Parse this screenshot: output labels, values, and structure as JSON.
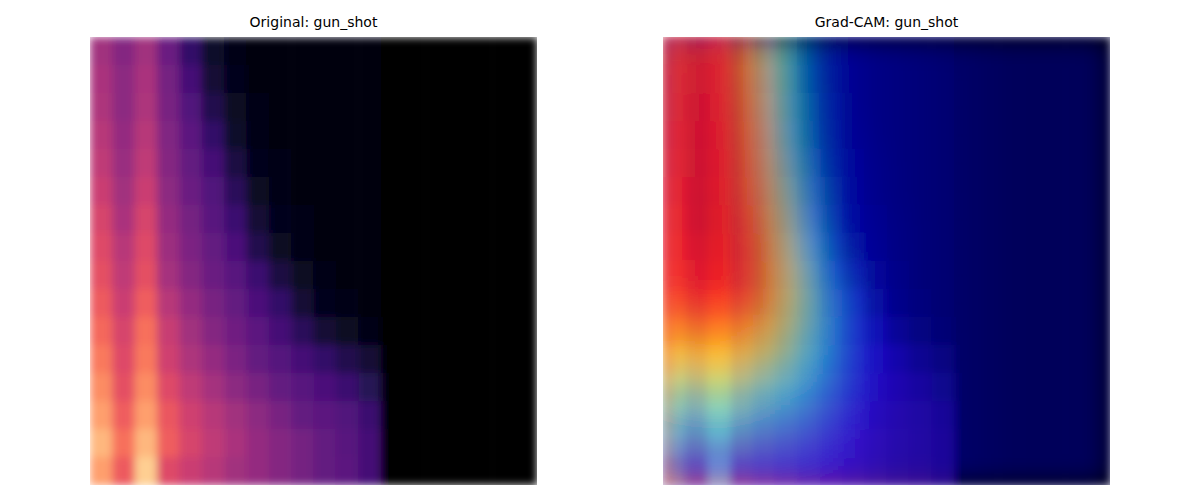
{
  "chart_data": [
    {
      "type": "heatmap",
      "title": "Original: gun_shot",
      "tick_labels": false,
      "zlim": [
        0,
        1
      ],
      "cells": [
        [
          0.45,
          0.38,
          0.45,
          0.32,
          0.18,
          0.08,
          0.04,
          0.03,
          0.03,
          0.03,
          0.03,
          0.03,
          0.02,
          0,
          0,
          0,
          0,
          0,
          0,
          0
        ],
        [
          0.47,
          0.4,
          0.47,
          0.34,
          0.22,
          0.1,
          0.05,
          0.03,
          0.03,
          0.03,
          0.03,
          0.03,
          0.02,
          0,
          0,
          0,
          0,
          0,
          0,
          0
        ],
        [
          0.48,
          0.4,
          0.48,
          0.35,
          0.25,
          0.14,
          0.06,
          0.04,
          0.03,
          0.03,
          0.03,
          0.03,
          0.02,
          0,
          0,
          0,
          0,
          0,
          0,
          0
        ],
        [
          0.5,
          0.42,
          0.5,
          0.37,
          0.28,
          0.18,
          0.08,
          0.04,
          0.03,
          0.03,
          0.03,
          0.03,
          0.02,
          0,
          0,
          0,
          0,
          0,
          0,
          0
        ],
        [
          0.52,
          0.43,
          0.52,
          0.38,
          0.3,
          0.22,
          0.12,
          0.05,
          0.04,
          0.03,
          0.03,
          0.03,
          0.02,
          0,
          0,
          0,
          0,
          0,
          0,
          0
        ],
        [
          0.55,
          0.45,
          0.55,
          0.4,
          0.32,
          0.25,
          0.16,
          0.07,
          0.04,
          0.03,
          0.03,
          0.03,
          0.02,
          0,
          0,
          0,
          0,
          0,
          0,
          0
        ],
        [
          0.58,
          0.47,
          0.58,
          0.42,
          0.34,
          0.27,
          0.2,
          0.1,
          0.05,
          0.04,
          0.03,
          0.03,
          0.02,
          0,
          0,
          0,
          0,
          0,
          0,
          0
        ],
        [
          0.6,
          0.5,
          0.6,
          0.44,
          0.36,
          0.3,
          0.24,
          0.14,
          0.07,
          0.04,
          0.03,
          0.03,
          0.03,
          0,
          0,
          0,
          0,
          0,
          0,
          0
        ],
        [
          0.62,
          0.52,
          0.62,
          0.46,
          0.38,
          0.32,
          0.27,
          0.2,
          0.12,
          0.06,
          0.04,
          0.03,
          0.03,
          0,
          0,
          0,
          0,
          0,
          0,
          0
        ],
        [
          0.65,
          0.55,
          0.66,
          0.5,
          0.42,
          0.35,
          0.3,
          0.24,
          0.18,
          0.1,
          0.05,
          0.04,
          0.03,
          0,
          0,
          0,
          0,
          0,
          0,
          0
        ],
        [
          0.68,
          0.58,
          0.7,
          0.54,
          0.45,
          0.38,
          0.33,
          0.28,
          0.22,
          0.16,
          0.1,
          0.06,
          0.04,
          0,
          0,
          0,
          0,
          0,
          0,
          0
        ],
        [
          0.72,
          0.6,
          0.72,
          0.56,
          0.48,
          0.42,
          0.36,
          0.3,
          0.26,
          0.22,
          0.18,
          0.14,
          0.1,
          0,
          0,
          0,
          0,
          0,
          0,
          0
        ],
        [
          0.76,
          0.62,
          0.76,
          0.6,
          0.52,
          0.46,
          0.4,
          0.35,
          0.3,
          0.27,
          0.24,
          0.2,
          0.15,
          0,
          0,
          0,
          0,
          0,
          0,
          0
        ],
        [
          0.8,
          0.66,
          0.8,
          0.64,
          0.56,
          0.5,
          0.45,
          0.4,
          0.35,
          0.3,
          0.28,
          0.25,
          0.2,
          0,
          0,
          0,
          0,
          0,
          0,
          0
        ],
        [
          0.85,
          0.7,
          0.85,
          0.66,
          0.58,
          0.52,
          0.47,
          0.42,
          0.38,
          0.34,
          0.3,
          0.27,
          0.22,
          0,
          0,
          0,
          0,
          0,
          0,
          0
        ],
        [
          0.8,
          0.65,
          0.9,
          0.6,
          0.55,
          0.5,
          0.45,
          0.42,
          0.38,
          0.34,
          0.3,
          0.28,
          0.22,
          0,
          0,
          0,
          0,
          0,
          0,
          0
        ]
      ]
    },
    {
      "type": "heatmap",
      "title": "Grad-CAM: gun_shot",
      "tick_labels": false,
      "zlim": [
        0,
        1
      ],
      "cells": [
        [
          0.82,
          0.85,
          0.88,
          0.8,
          0.62,
          0.38,
          0.22,
          0.14,
          0.1,
          0.08,
          0.07,
          0.06,
          0.05,
          0.04,
          0.03,
          0.02,
          0.02,
          0.02,
          0.02,
          0.02
        ],
        [
          0.83,
          0.86,
          0.89,
          0.81,
          0.64,
          0.39,
          0.23,
          0.14,
          0.1,
          0.08,
          0.07,
          0.06,
          0.05,
          0.04,
          0.03,
          0.02,
          0.02,
          0.02,
          0.02,
          0.02
        ],
        [
          0.84,
          0.87,
          0.89,
          0.82,
          0.66,
          0.4,
          0.24,
          0.15,
          0.1,
          0.08,
          0.07,
          0.06,
          0.05,
          0.04,
          0.03,
          0.02,
          0.02,
          0.02,
          0.02,
          0.02
        ],
        [
          0.85,
          0.88,
          0.9,
          0.84,
          0.68,
          0.42,
          0.25,
          0.15,
          0.11,
          0.08,
          0.07,
          0.06,
          0.05,
          0.04,
          0.03,
          0.02,
          0.02,
          0.02,
          0.02,
          0.02
        ],
        [
          0.85,
          0.89,
          0.9,
          0.85,
          0.7,
          0.46,
          0.27,
          0.16,
          0.11,
          0.09,
          0.07,
          0.06,
          0.05,
          0.04,
          0.03,
          0.02,
          0.02,
          0.02,
          0.02,
          0.02
        ],
        [
          0.86,
          0.89,
          0.91,
          0.85,
          0.72,
          0.5,
          0.3,
          0.17,
          0.12,
          0.09,
          0.07,
          0.06,
          0.05,
          0.04,
          0.03,
          0.02,
          0.02,
          0.02,
          0.02,
          0.02
        ],
        [
          0.86,
          0.9,
          0.92,
          0.86,
          0.75,
          0.55,
          0.32,
          0.18,
          0.12,
          0.09,
          0.08,
          0.06,
          0.05,
          0.04,
          0.03,
          0.02,
          0.02,
          0.02,
          0.02,
          0.02
        ],
        [
          0.86,
          0.89,
          0.91,
          0.86,
          0.77,
          0.59,
          0.37,
          0.21,
          0.13,
          0.1,
          0.08,
          0.06,
          0.05,
          0.04,
          0.03,
          0.02,
          0.02,
          0.02,
          0.02,
          0.02
        ],
        [
          0.85,
          0.88,
          0.9,
          0.86,
          0.78,
          0.62,
          0.42,
          0.25,
          0.15,
          0.1,
          0.08,
          0.06,
          0.05,
          0.04,
          0.03,
          0.02,
          0.02,
          0.02,
          0.02,
          0.02
        ],
        [
          0.82,
          0.85,
          0.86,
          0.82,
          0.75,
          0.6,
          0.45,
          0.3,
          0.18,
          0.11,
          0.08,
          0.06,
          0.05,
          0.04,
          0.03,
          0.02,
          0.02,
          0.02,
          0.02,
          0.02
        ],
        [
          0.72,
          0.75,
          0.76,
          0.72,
          0.66,
          0.55,
          0.42,
          0.3,
          0.18,
          0.12,
          0.08,
          0.06,
          0.05,
          0.04,
          0.03,
          0.02,
          0.02,
          0.02,
          0.02,
          0.02
        ],
        [
          0.6,
          0.62,
          0.64,
          0.6,
          0.55,
          0.48,
          0.38,
          0.28,
          0.18,
          0.12,
          0.08,
          0.06,
          0.05,
          0.04,
          0.03,
          0.02,
          0.02,
          0.02,
          0.02,
          0.02
        ],
        [
          0.45,
          0.48,
          0.5,
          0.46,
          0.42,
          0.38,
          0.32,
          0.25,
          0.16,
          0.11,
          0.08,
          0.06,
          0.05,
          0.04,
          0.03,
          0.02,
          0.02,
          0.02,
          0.02,
          0.02
        ],
        [
          0.32,
          0.34,
          0.36,
          0.34,
          0.32,
          0.3,
          0.26,
          0.2,
          0.14,
          0.1,
          0.07,
          0.06,
          0.05,
          0.04,
          0.03,
          0.02,
          0.02,
          0.02,
          0.02,
          0.02
        ],
        [
          0.22,
          0.24,
          0.25,
          0.24,
          0.23,
          0.22,
          0.2,
          0.16,
          0.12,
          0.09,
          0.07,
          0.06,
          0.05,
          0.04,
          0.03,
          0.02,
          0.02,
          0.02,
          0.02,
          0.02
        ],
        [
          0.15,
          0.16,
          0.17,
          0.16,
          0.16,
          0.15,
          0.14,
          0.12,
          0.1,
          0.08,
          0.06,
          0.05,
          0.05,
          0.04,
          0.03,
          0.02,
          0.02,
          0.02,
          0.02,
          0.02
        ]
      ]
    }
  ]
}
